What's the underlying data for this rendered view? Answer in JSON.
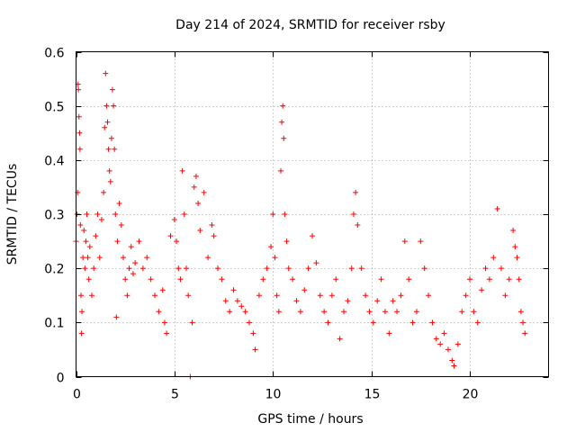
{
  "chart_data": {
    "type": "scatter",
    "title": "Day 214 of 2024, SRMTID for receiver rsby",
    "xlabel": "GPS time / hours",
    "ylabel": "SRMTID / TECUs",
    "xlim": [
      0,
      24
    ],
    "ylim": [
      0,
      0.6
    ],
    "x_ticks": [
      0,
      5,
      10,
      15,
      20
    ],
    "x_tick_labels": [
      "0",
      "5",
      "10",
      "15",
      "20"
    ],
    "y_ticks": [
      0,
      0.1,
      0.2,
      0.3,
      0.4,
      0.5,
      0.6
    ],
    "y_tick_labels": [
      "0",
      "0.1",
      "0.2",
      "0.3",
      "0.4",
      "0.5",
      "0.6"
    ],
    "grid": true,
    "marker": "plus",
    "color": "#ff0000",
    "series": [
      {
        "name": "SRMTID",
        "points": [
          [
            0.0,
            0.25
          ],
          [
            0.05,
            0.3
          ],
          [
            0.08,
            0.34
          ],
          [
            0.1,
            0.54
          ],
          [
            0.12,
            0.53
          ],
          [
            0.15,
            0.48
          ],
          [
            0.18,
            0.45
          ],
          [
            0.2,
            0.42
          ],
          [
            0.22,
            0.28
          ],
          [
            0.25,
            0.15
          ],
          [
            0.28,
            0.08
          ],
          [
            0.3,
            0.12
          ],
          [
            0.35,
            0.22
          ],
          [
            0.4,
            0.27
          ],
          [
            0.45,
            0.2
          ],
          [
            0.5,
            0.25
          ],
          [
            0.55,
            0.3
          ],
          [
            0.6,
            0.22
          ],
          [
            0.65,
            0.18
          ],
          [
            0.7,
            0.24
          ],
          [
            0.8,
            0.15
          ],
          [
            0.9,
            0.2
          ],
          [
            1.0,
            0.26
          ],
          [
            1.1,
            0.3
          ],
          [
            1.2,
            0.22
          ],
          [
            1.3,
            0.29
          ],
          [
            1.4,
            0.34
          ],
          [
            1.45,
            0.46
          ],
          [
            1.5,
            0.56
          ],
          [
            1.55,
            0.5
          ],
          [
            1.6,
            0.47
          ],
          [
            1.65,
            0.42
          ],
          [
            1.7,
            0.38
          ],
          [
            1.75,
            0.36
          ],
          [
            1.8,
            0.44
          ],
          [
            1.85,
            0.53
          ],
          [
            1.9,
            0.5
          ],
          [
            1.95,
            0.42
          ],
          [
            2.0,
            0.3
          ],
          [
            2.05,
            0.11
          ],
          [
            2.1,
            0.25
          ],
          [
            2.2,
            0.32
          ],
          [
            2.3,
            0.28
          ],
          [
            2.4,
            0.22
          ],
          [
            2.5,
            0.18
          ],
          [
            2.6,
            0.15
          ],
          [
            2.7,
            0.2
          ],
          [
            2.8,
            0.24
          ],
          [
            2.9,
            0.19
          ],
          [
            3.0,
            0.21
          ],
          [
            3.2,
            0.25
          ],
          [
            3.4,
            0.2
          ],
          [
            3.6,
            0.22
          ],
          [
            3.8,
            0.18
          ],
          [
            4.0,
            0.15
          ],
          [
            4.2,
            0.12
          ],
          [
            4.4,
            0.16
          ],
          [
            4.5,
            0.1
          ],
          [
            4.6,
            0.08
          ],
          [
            4.8,
            0.26
          ],
          [
            5.0,
            0.29
          ],
          [
            5.1,
            0.25
          ],
          [
            5.2,
            0.2
          ],
          [
            5.3,
            0.18
          ],
          [
            5.4,
            0.38
          ],
          [
            5.5,
            0.3
          ],
          [
            5.6,
            0.2
          ],
          [
            5.7,
            0.15
          ],
          [
            5.8,
            0.0
          ],
          [
            5.9,
            0.1
          ],
          [
            6.0,
            0.35
          ],
          [
            6.1,
            0.37
          ],
          [
            6.2,
            0.32
          ],
          [
            6.3,
            0.27
          ],
          [
            6.5,
            0.34
          ],
          [
            6.7,
            0.22
          ],
          [
            6.9,
            0.28
          ],
          [
            7.0,
            0.26
          ],
          [
            7.2,
            0.2
          ],
          [
            7.4,
            0.18
          ],
          [
            7.6,
            0.14
          ],
          [
            7.8,
            0.12
          ],
          [
            8.0,
            0.16
          ],
          [
            8.2,
            0.14
          ],
          [
            8.4,
            0.13
          ],
          [
            8.6,
            0.12
          ],
          [
            8.8,
            0.1
          ],
          [
            9.0,
            0.08
          ],
          [
            9.1,
            0.05
          ],
          [
            9.3,
            0.15
          ],
          [
            9.5,
            0.18
          ],
          [
            9.7,
            0.2
          ],
          [
            9.9,
            0.24
          ],
          [
            10.0,
            0.3
          ],
          [
            10.1,
            0.22
          ],
          [
            10.2,
            0.15
          ],
          [
            10.3,
            0.12
          ],
          [
            10.4,
            0.38
          ],
          [
            10.45,
            0.47
          ],
          [
            10.5,
            0.5
          ],
          [
            10.55,
            0.44
          ],
          [
            10.6,
            0.3
          ],
          [
            10.7,
            0.25
          ],
          [
            10.8,
            0.2
          ],
          [
            11.0,
            0.18
          ],
          [
            11.2,
            0.14
          ],
          [
            11.4,
            0.12
          ],
          [
            11.6,
            0.16
          ],
          [
            11.8,
            0.2
          ],
          [
            12.0,
            0.26
          ],
          [
            12.2,
            0.21
          ],
          [
            12.4,
            0.15
          ],
          [
            12.6,
            0.12
          ],
          [
            12.8,
            0.1
          ],
          [
            13.0,
            0.15
          ],
          [
            13.2,
            0.18
          ],
          [
            13.4,
            0.07
          ],
          [
            13.6,
            0.12
          ],
          [
            13.8,
            0.14
          ],
          [
            14.0,
            0.2
          ],
          [
            14.1,
            0.3
          ],
          [
            14.2,
            0.34
          ],
          [
            14.3,
            0.28
          ],
          [
            14.5,
            0.2
          ],
          [
            14.7,
            0.15
          ],
          [
            14.9,
            0.12
          ],
          [
            15.1,
            0.1
          ],
          [
            15.3,
            0.14
          ],
          [
            15.5,
            0.18
          ],
          [
            15.7,
            0.12
          ],
          [
            15.9,
            0.08
          ],
          [
            16.1,
            0.14
          ],
          [
            16.3,
            0.12
          ],
          [
            16.5,
            0.15
          ],
          [
            16.7,
            0.25
          ],
          [
            16.9,
            0.18
          ],
          [
            17.1,
            0.1
          ],
          [
            17.3,
            0.12
          ],
          [
            17.5,
            0.25
          ],
          [
            17.7,
            0.2
          ],
          [
            17.9,
            0.15
          ],
          [
            18.1,
            0.1
          ],
          [
            18.3,
            0.07
          ],
          [
            18.5,
            0.06
          ],
          [
            18.7,
            0.08
          ],
          [
            18.9,
            0.05
          ],
          [
            19.1,
            0.03
          ],
          [
            19.2,
            0.02
          ],
          [
            19.4,
            0.06
          ],
          [
            19.6,
            0.12
          ],
          [
            19.8,
            0.15
          ],
          [
            20.0,
            0.18
          ],
          [
            20.2,
            0.12
          ],
          [
            20.4,
            0.1
          ],
          [
            20.6,
            0.16
          ],
          [
            20.8,
            0.2
          ],
          [
            21.0,
            0.18
          ],
          [
            21.2,
            0.22
          ],
          [
            21.4,
            0.31
          ],
          [
            21.6,
            0.2
          ],
          [
            21.8,
            0.15
          ],
          [
            22.0,
            0.18
          ],
          [
            22.2,
            0.27
          ],
          [
            22.3,
            0.24
          ],
          [
            22.4,
            0.22
          ],
          [
            22.5,
            0.18
          ],
          [
            22.6,
            0.12
          ],
          [
            22.7,
            0.1
          ],
          [
            22.8,
            0.08
          ]
        ]
      }
    ]
  }
}
